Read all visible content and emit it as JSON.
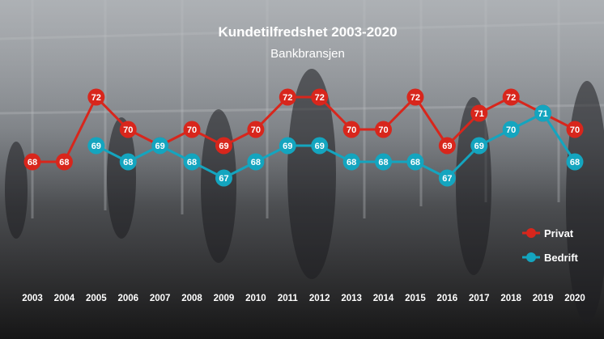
{
  "chart_data": {
    "type": "line",
    "title": "Kundetilfredshet 2003-2020",
    "subtitle": "Bankbransjen",
    "categories": [
      "2003",
      "2004",
      "2005",
      "2006",
      "2007",
      "2008",
      "2009",
      "2010",
      "2011",
      "2012",
      "2013",
      "2014",
      "2015",
      "2016",
      "2017",
      "2018",
      "2019",
      "2020"
    ],
    "series": [
      {
        "name": "Privat",
        "color": "#d8261c",
        "values": [
          68,
          68,
          72,
          70,
          69,
          70,
          69,
          70,
          72,
          72,
          70,
          70,
          72,
          69,
          71,
          72,
          71,
          70
        ]
      },
      {
        "name": "Bedrift",
        "color": "#14a5bf",
        "values": [
          null,
          null,
          69,
          68,
          69,
          68,
          67,
          68,
          69,
          69,
          68,
          68,
          68,
          67,
          69,
          70,
          71,
          68
        ]
      }
    ],
    "ylim": [
      66,
      73
    ],
    "grid": false,
    "legend": "right"
  }
}
